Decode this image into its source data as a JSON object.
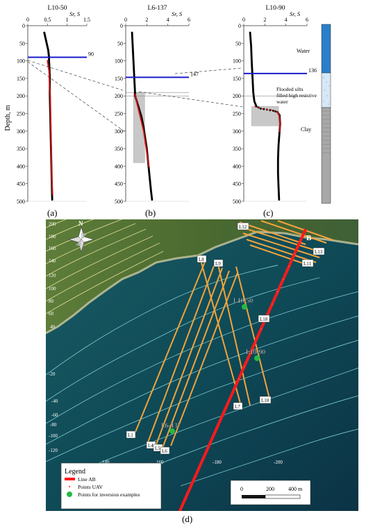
{
  "panels": [
    {
      "id": "a",
      "title": "L10-50",
      "panel_label": "(a)",
      "x_ticks": [
        "0",
        "0.5",
        "1",
        "1.5"
      ],
      "x_max": 1.5,
      "x_unit": "Sr, S",
      "marker_depth": 90,
      "marker_label": "90",
      "ylabel": "Depth, m",
      "y_ticks": [
        "0",
        "50",
        "100",
        "150",
        "200",
        "250",
        "300",
        "350",
        "400",
        "450",
        "500"
      ]
    },
    {
      "id": "b",
      "title": "L6-137",
      "panel_label": "(b)",
      "x_ticks": [
        "0",
        "2",
        "4",
        "6"
      ],
      "x_max": 6,
      "x_unit": "Sr, S",
      "marker_depth": 147,
      "marker_label": "147",
      "y_ticks": [
        "0",
        "50",
        "100",
        "150",
        "200",
        "250",
        "300",
        "350",
        "400",
        "450",
        "500"
      ]
    },
    {
      "id": "c",
      "title": "L10-90",
      "panel_label": "(c)",
      "x_ticks": [
        "0",
        "2",
        "4",
        "6"
      ],
      "x_max": 6,
      "x_unit": "Sr, S",
      "marker_depth": 136,
      "marker_label": "136",
      "y_ticks": [
        "0",
        "50",
        "100",
        "150",
        "200",
        "250",
        "300",
        "350",
        "400",
        "450",
        "500"
      ]
    }
  ],
  "layers_legend": {
    "water": "Water",
    "silts_lines": [
      "Flooded silts",
      "filled high resistive",
      "water"
    ],
    "clay": "Clay"
  },
  "map": {
    "panel_label": "(d)",
    "north_label": "N",
    "point_b": "B",
    "lines": [
      "L1",
      "L4",
      "L5",
      "L6",
      "L7",
      "L8",
      "L9",
      "L10",
      "L11",
      "L12",
      "L13",
      "L18"
    ],
    "points": [
      "L10-50",
      "L10-90",
      "L6-137"
    ],
    "contours": [
      "200",
      "180",
      "160",
      "140",
      "120",
      "100",
      "80",
      "60",
      "40",
      "-20",
      "-40",
      "-60",
      "-80",
      "-100",
      "-120",
      "140",
      "160",
      "-180",
      "-200"
    ],
    "legend": {
      "title": "Legend",
      "items": [
        "Line AB",
        "Points UAV",
        "Points for inversion examples"
      ]
    },
    "scale": {
      "ticks": [
        "0",
        "200",
        "400 m"
      ]
    }
  },
  "colors": {
    "blue_marker": "#1a1acc",
    "red_curve": "#dd1111",
    "black_curve": "#000000",
    "water_col": "#2a7fc8",
    "silts_col": "#d7e8f6",
    "clay_col": "#a8a8a8",
    "line_ab": "#ff1a1a",
    "profile_lines": "#f3a43a",
    "inversion_points": "#22bb44",
    "sea": "#0e4a54",
    "land": "#587a38"
  },
  "chart_data": [
    {
      "type": "scatter",
      "title": "L10-50",
      "xlabel": "Sr, S",
      "ylabel": "Depth, m",
      "xlim": [
        0,
        1.5
      ],
      "ylim": [
        500,
        0
      ],
      "series": [
        {
          "values": [
            [
              0.42,
              20
            ],
            [
              0.44,
              30
            ],
            [
              0.46,
              40
            ],
            [
              0.48,
              50
            ],
            [
              0.5,
              60
            ],
            [
              0.52,
              70
            ],
            [
              0.53,
              80
            ],
            [
              0.54,
              90
            ],
            [
              0.54,
              100
            ],
            [
              0.55,
              120
            ],
            [
              0.56,
              150
            ],
            [
              0.56,
              200
            ],
            [
              0.57,
              250
            ],
            [
              0.58,
              300
            ],
            [
              0.59,
              350
            ],
            [
              0.6,
              400
            ],
            [
              0.61,
              450
            ],
            [
              0.62,
              495
            ]
          ]
        },
        {
          "values": [
            [
              0.5,
              100
            ],
            [
              0.54,
              130
            ],
            [
              0.55,
              160
            ],
            [
              0.57,
              200
            ],
            [
              0.58,
              260
            ],
            [
              0.59,
              320
            ],
            [
              0.6,
              380
            ],
            [
              0.61,
              440
            ],
            [
              0.63,
              480
            ]
          ]
        }
      ]
    },
    {
      "type": "scatter",
      "title": "L6-137",
      "xlabel": "Sr, S",
      "ylabel": "Depth, m",
      "xlim": [
        0,
        6
      ],
      "ylim": [
        500,
        0
      ],
      "series": [
        {
          "values": [
            [
              0.6,
              20
            ],
            [
              0.65,
              50
            ],
            [
              0.7,
              80
            ],
            [
              0.75,
              110
            ],
            [
              0.8,
              140
            ],
            [
              0.85,
              170
            ],
            [
              0.9,
              200
            ],
            [
              1.1,
              220
            ],
            [
              1.3,
              240
            ],
            [
              1.5,
              260
            ],
            [
              1.7,
              290
            ],
            [
              1.85,
              320
            ],
            [
              2.0,
              350
            ],
            [
              2.1,
              380
            ],
            [
              2.2,
              410
            ],
            [
              2.3,
              440
            ],
            [
              2.4,
              470
            ],
            [
              2.5,
              495
            ]
          ]
        },
        {
          "values": [
            [
              0.9,
              195
            ],
            [
              1.1,
              225
            ],
            [
              1.3,
              250
            ],
            [
              1.5,
              275
            ],
            [
              1.7,
              300
            ],
            [
              1.9,
              340
            ],
            [
              2.05,
              370
            ],
            [
              2.2,
              400
            ]
          ]
        }
      ]
    },
    {
      "type": "scatter",
      "title": "L10-90",
      "xlabel": "Sr, S",
      "ylabel": "Depth, m",
      "xlim": [
        0,
        6
      ],
      "ylim": [
        500,
        0
      ],
      "series": [
        {
          "values": [
            [
              0.6,
              20
            ],
            [
              0.7,
              60
            ],
            [
              0.75,
              100
            ],
            [
              0.8,
              130
            ],
            [
              0.85,
              160
            ],
            [
              0.9,
              190
            ],
            [
              1.0,
              215
            ],
            [
              1.2,
              230
            ],
            [
              1.6,
              236
            ],
            [
              2.2,
              239
            ],
            [
              2.8,
              242
            ],
            [
              3.2,
              246
            ],
            [
              3.4,
              255
            ],
            [
              3.45,
              280
            ],
            [
              3.4,
              300
            ],
            [
              3.3,
              340
            ],
            [
              3.25,
              380
            ],
            [
              3.25,
              420
            ],
            [
              3.3,
              460
            ],
            [
              3.35,
              495
            ]
          ]
        },
        {
          "values": [
            [
              1.1,
              230
            ],
            [
              1.8,
              237
            ],
            [
              2.6,
              240
            ],
            [
              3.2,
              246
            ],
            [
              3.4,
              260
            ],
            [
              3.45,
              285
            ],
            [
              3.4,
              300
            ]
          ]
        }
      ]
    }
  ]
}
